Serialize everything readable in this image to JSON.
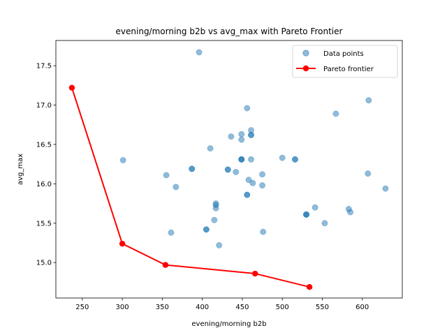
{
  "chart_data": {
    "type": "scatter",
    "title": "evening/morning b2b vs avg_max with Pareto Frontier",
    "xlabel": "evening/morning b2b",
    "ylabel": "avg_max",
    "xlim": [
      217,
      650
    ],
    "ylim": [
      14.55,
      17.82
    ],
    "xticks": [
      250,
      300,
      350,
      400,
      450,
      500,
      550,
      600
    ],
    "yticks": [
      15.0,
      15.5,
      16.0,
      16.5,
      17.0,
      17.5
    ],
    "grid": false,
    "legend_position": "top-right",
    "colors": {
      "points": "#1f77b4",
      "frontier": "#ff0000"
    },
    "series": [
      {
        "name": "Data points",
        "kind": "scatter",
        "x": [
          396,
          301,
          355,
          367,
          387,
          387,
          410,
          436,
          432,
          432,
          442,
          449,
          449,
          449,
          449,
          449,
          456,
          456,
          456,
          458,
          461,
          461,
          461,
          461,
          463,
          475,
          475,
          476,
          500,
          516,
          516,
          530,
          530,
          530,
          541,
          553,
          567,
          583,
          585,
          607,
          608,
          629,
          361,
          405,
          405,
          415,
          417,
          417,
          417,
          421
        ],
        "y": [
          17.67,
          16.3,
          16.11,
          15.96,
          16.19,
          16.19,
          16.45,
          16.6,
          16.18,
          16.18,
          16.15,
          16.63,
          16.56,
          16.31,
          16.31,
          16.31,
          16.96,
          15.86,
          15.86,
          16.05,
          16.68,
          16.62,
          16.62,
          16.31,
          16.01,
          16.12,
          15.98,
          15.39,
          16.33,
          16.31,
          16.31,
          15.61,
          15.61,
          15.61,
          15.7,
          15.5,
          16.89,
          15.68,
          15.64,
          16.13,
          17.06,
          15.94,
          15.38,
          15.42,
          15.42,
          15.54,
          15.69,
          15.73,
          15.75,
          15.22
        ]
      },
      {
        "name": "Pareto frontier",
        "kind": "line",
        "x": [
          237,
          300,
          354,
          466,
          534
        ],
        "y": [
          17.22,
          15.24,
          14.97,
          14.86,
          14.69
        ]
      }
    ]
  }
}
